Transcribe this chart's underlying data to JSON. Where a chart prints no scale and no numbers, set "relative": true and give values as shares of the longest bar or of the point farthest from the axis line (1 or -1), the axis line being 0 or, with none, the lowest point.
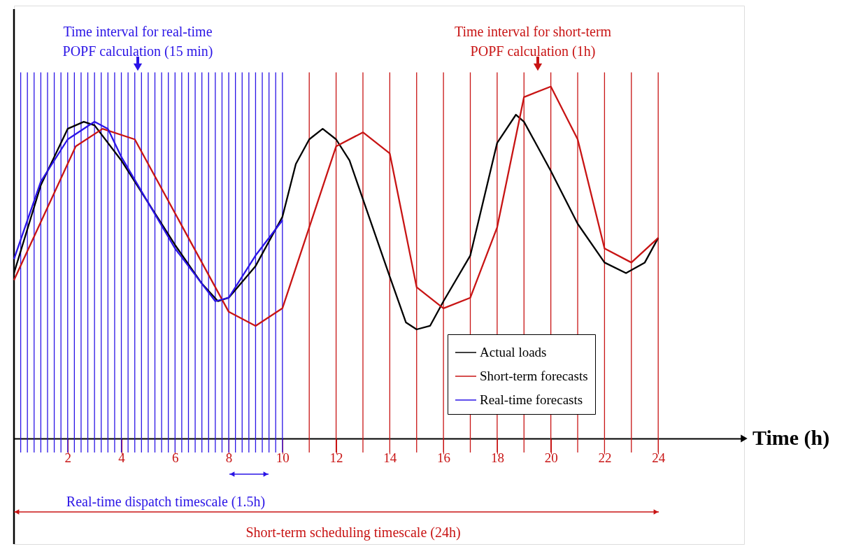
{
  "chart_data": {
    "type": "line",
    "relative": true,
    "xlabel": "Time (h)",
    "xlim": [
      0,
      27.2
    ],
    "xticks": [
      2,
      4,
      6,
      8,
      10,
      12,
      14,
      16,
      18,
      20,
      22,
      24
    ],
    "series": [
      {
        "name": "Actual loads",
        "color": "#000000",
        "x": [
          0,
          1,
          2,
          2.6,
          3,
          4,
          5,
          6,
          7,
          7.6,
          8,
          9,
          10,
          10.5,
          11,
          11.5,
          12,
          12.5,
          13,
          14,
          14.6,
          15,
          15.5,
          16,
          17,
          17.5,
          18,
          18.7,
          19,
          20,
          21,
          22,
          22.8,
          23.5,
          24
        ],
        "values": [
          0.47,
          0.72,
          0.88,
          0.9,
          0.89,
          0.79,
          0.67,
          0.55,
          0.44,
          0.39,
          0.4,
          0.49,
          0.63,
          0.78,
          0.85,
          0.88,
          0.85,
          0.79,
          0.68,
          0.46,
          0.33,
          0.31,
          0.32,
          0.39,
          0.52,
          0.68,
          0.84,
          0.92,
          0.9,
          0.76,
          0.61,
          0.5,
          0.47,
          0.5,
          0.57
        ]
      },
      {
        "name": "Short-term forecasts",
        "color": "#c81414",
        "x": [
          0,
          2.3,
          3.3,
          4.5,
          8,
          9,
          10,
          12,
          13,
          14,
          15,
          16,
          17,
          18,
          19,
          20,
          21,
          22,
          23,
          24
        ],
        "values": [
          0.45,
          0.83,
          0.88,
          0.85,
          0.36,
          0.32,
          0.37,
          0.83,
          0.87,
          0.81,
          0.43,
          0.37,
          0.4,
          0.6,
          0.97,
          1,
          0.85,
          0.54,
          0.5,
          0.57
        ]
      },
      {
        "name": "Real-time forecasts",
        "color": "#2a14e6",
        "x": [
          0,
          1,
          2,
          3,
          3.5,
          4,
          5,
          6,
          7,
          7.5,
          8,
          9,
          10
        ],
        "values": [
          0.51,
          0.73,
          0.85,
          0.9,
          0.88,
          0.8,
          0.67,
          0.54,
          0.44,
          0.39,
          0.4,
          0.52,
          0.62
        ]
      }
    ],
    "legend": "bottom right",
    "grid": false,
    "annotations": [
      "Time interval for real-time\nPOPF calculation (15 min)",
      "Time interval for short-term\nPOPF calculation (1h)",
      "Real-time dispatch timescale (1.5h)",
      "Short-term scheduling timescale (24h)"
    ],
    "ref_lines": [
      {
        "axis": "x",
        "value": 0.25,
        "color": "#2a14e6"
      },
      {
        "axis": "x",
        "value": 0.5,
        "color": "#2a14e6"
      },
      {
        "axis": "x",
        "value": 0.75,
        "color": "#2a14e6"
      },
      {
        "axis": "x",
        "value": 1,
        "color": "#2a14e6"
      },
      {
        "axis": "x",
        "value": 1.25,
        "color": "#2a14e6"
      },
      {
        "axis": "x",
        "value": 1.5,
        "color": "#2a14e6"
      },
      {
        "axis": "x",
        "value": 1.75,
        "color": "#2a14e6"
      },
      {
        "axis": "x",
        "value": 2,
        "color": "#2a14e6"
      },
      {
        "axis": "x",
        "value": 2.25,
        "color": "#2a14e6"
      },
      {
        "axis": "x",
        "value": 2.5,
        "color": "#2a14e6"
      },
      {
        "axis": "x",
        "value": 2.75,
        "color": "#2a14e6"
      },
      {
        "axis": "x",
        "value": 3,
        "color": "#2a14e6"
      },
      {
        "axis": "x",
        "value": 3.25,
        "color": "#2a14e6"
      },
      {
        "axis": "x",
        "value": 3.5,
        "color": "#2a14e6"
      },
      {
        "axis": "x",
        "value": 3.75,
        "color": "#2a14e6"
      },
      {
        "axis": "x",
        "value": 4,
        "color": "#2a14e6"
      },
      {
        "axis": "x",
        "value": 4.25,
        "color": "#2a14e6"
      },
      {
        "axis": "x",
        "value": 4.5,
        "color": "#2a14e6"
      },
      {
        "axis": "x",
        "value": 4.75,
        "color": "#2a14e6"
      },
      {
        "axis": "x",
        "value": 5,
        "color": "#2a14e6"
      },
      {
        "axis": "x",
        "value": 5.25,
        "color": "#2a14e6"
      },
      {
        "axis": "x",
        "value": 5.5,
        "color": "#2a14e6"
      },
      {
        "axis": "x",
        "value": 5.75,
        "color": "#2a14e6"
      },
      {
        "axis": "x",
        "value": 6,
        "color": "#2a14e6"
      },
      {
        "axis": "x",
        "value": 6.25,
        "color": "#2a14e6"
      },
      {
        "axis": "x",
        "value": 6.5,
        "color": "#2a14e6"
      },
      {
        "axis": "x",
        "value": 6.75,
        "color": "#2a14e6"
      },
      {
        "axis": "x",
        "value": 7,
        "color": "#2a14e6"
      },
      {
        "axis": "x",
        "value": 7.25,
        "color": "#2a14e6"
      },
      {
        "axis": "x",
        "value": 7.5,
        "color": "#2a14e6"
      },
      {
        "axis": "x",
        "value": 7.75,
        "color": "#2a14e6"
      },
      {
        "axis": "x",
        "value": 8,
        "color": "#2a14e6"
      },
      {
        "axis": "x",
        "value": 8.25,
        "color": "#2a14e6"
      },
      {
        "axis": "x",
        "value": 8.5,
        "color": "#2a14e6"
      },
      {
        "axis": "x",
        "value": 8.75,
        "color": "#2a14e6"
      },
      {
        "axis": "x",
        "value": 9,
        "color": "#2a14e6"
      },
      {
        "axis": "x",
        "value": 9.25,
        "color": "#2a14e6"
      },
      {
        "axis": "x",
        "value": 9.5,
        "color": "#2a14e6"
      },
      {
        "axis": "x",
        "value": 9.75,
        "color": "#2a14e6"
      },
      {
        "axis": "x",
        "value": 10,
        "color": "#2a14e6"
      },
      {
        "axis": "x",
        "value": 11,
        "color": "#c81414"
      },
      {
        "axis": "x",
        "value": 12,
        "color": "#c81414"
      },
      {
        "axis": "x",
        "value": 13,
        "color": "#c81414"
      },
      {
        "axis": "x",
        "value": 14,
        "color": "#c81414"
      },
      {
        "axis": "x",
        "value": 15,
        "color": "#c81414"
      },
      {
        "axis": "x",
        "value": 16,
        "color": "#c81414"
      },
      {
        "axis": "x",
        "value": 17,
        "color": "#c81414"
      },
      {
        "axis": "x",
        "value": 18,
        "color": "#c81414"
      },
      {
        "axis": "x",
        "value": 19,
        "color": "#c81414"
      },
      {
        "axis": "x",
        "value": 20,
        "color": "#c81414"
      },
      {
        "axis": "x",
        "value": 21,
        "color": "#c81414"
      },
      {
        "axis": "x",
        "value": 22,
        "color": "#c81414"
      },
      {
        "axis": "x",
        "value": 23,
        "color": "#c81414"
      },
      {
        "axis": "x",
        "value": 24,
        "color": "#c81414"
      }
    ]
  }
}
